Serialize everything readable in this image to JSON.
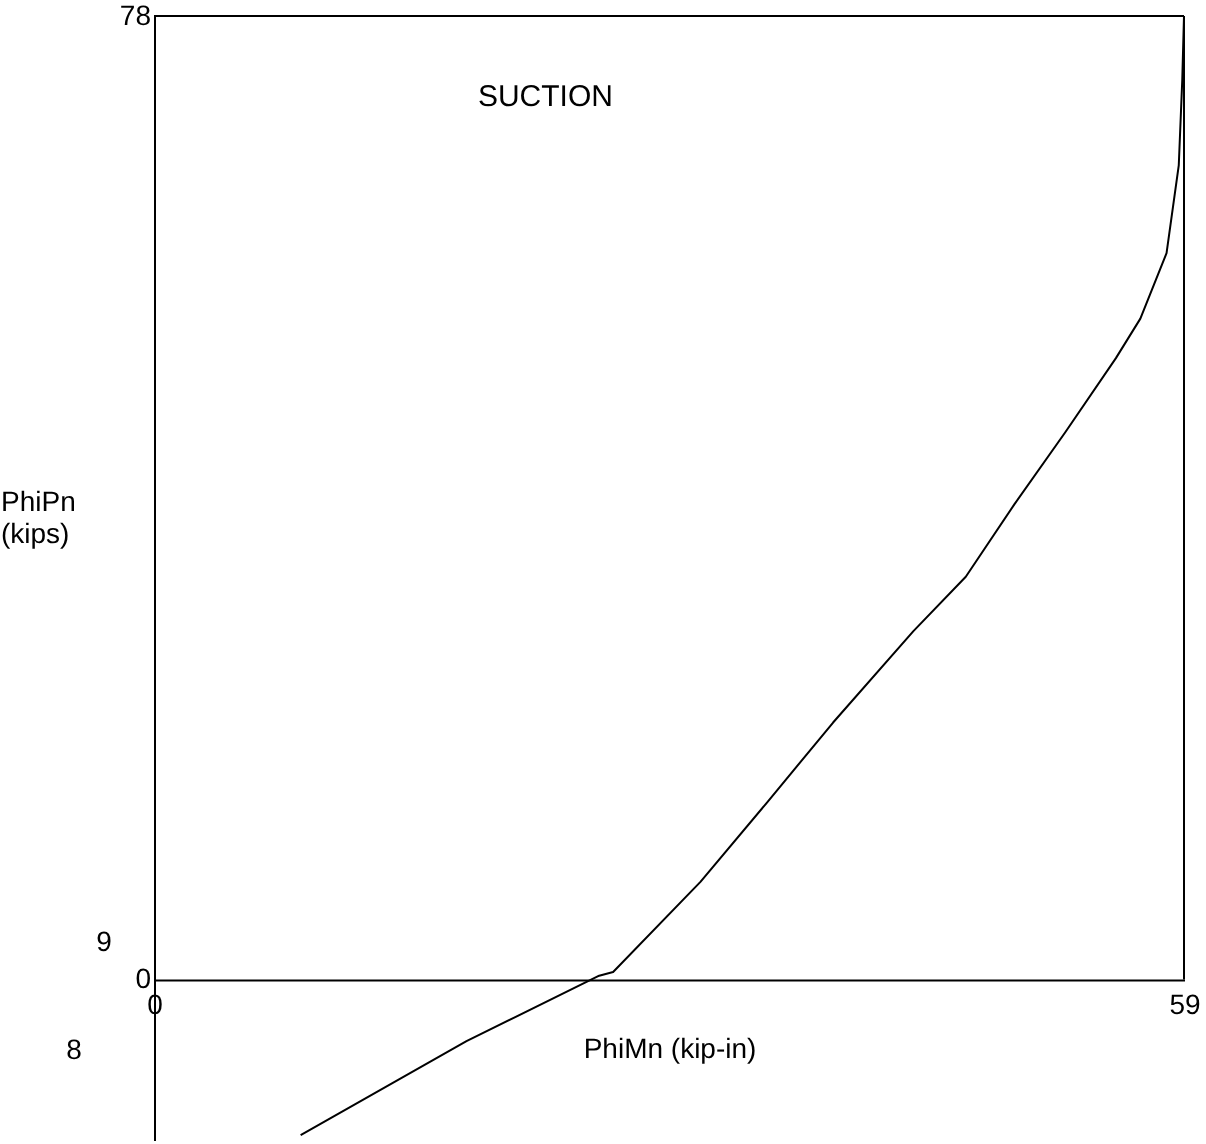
{
  "chart_data": {
    "type": "line",
    "title": "SUCTION",
    "xlabel": "PhiMn (kip-in)",
    "ylabel": "PhiPn\n(kips)",
    "x": [
      59.0,
      58.9,
      58.7,
      58.0,
      56.5,
      55.1,
      52.2,
      49.3,
      46.5,
      43.5,
      38.9,
      35.1,
      31.3,
      26.3,
      25.5,
      17.9,
      8.4
    ],
    "series": [
      {
        "color": "#000000",
        "values": [
          78,
          72.8,
          65.9,
          58.8,
          53.5,
          50.3,
          44.3,
          38.5,
          32.6,
          28.2,
          20.8,
          14.3,
          7.9,
          0.6,
          0.3,
          -5.0,
          -12.6
        ]
      }
    ],
    "xlim": [
      0,
      59
    ],
    "xticks": [
      0,
      59
    ],
    "ylim": [
      -13,
      78
    ],
    "yticks": [
      0,
      78
    ],
    "annotations": [
      "9",
      "8"
    ],
    "grid": false,
    "marker": "none",
    "line_style": "solid"
  }
}
